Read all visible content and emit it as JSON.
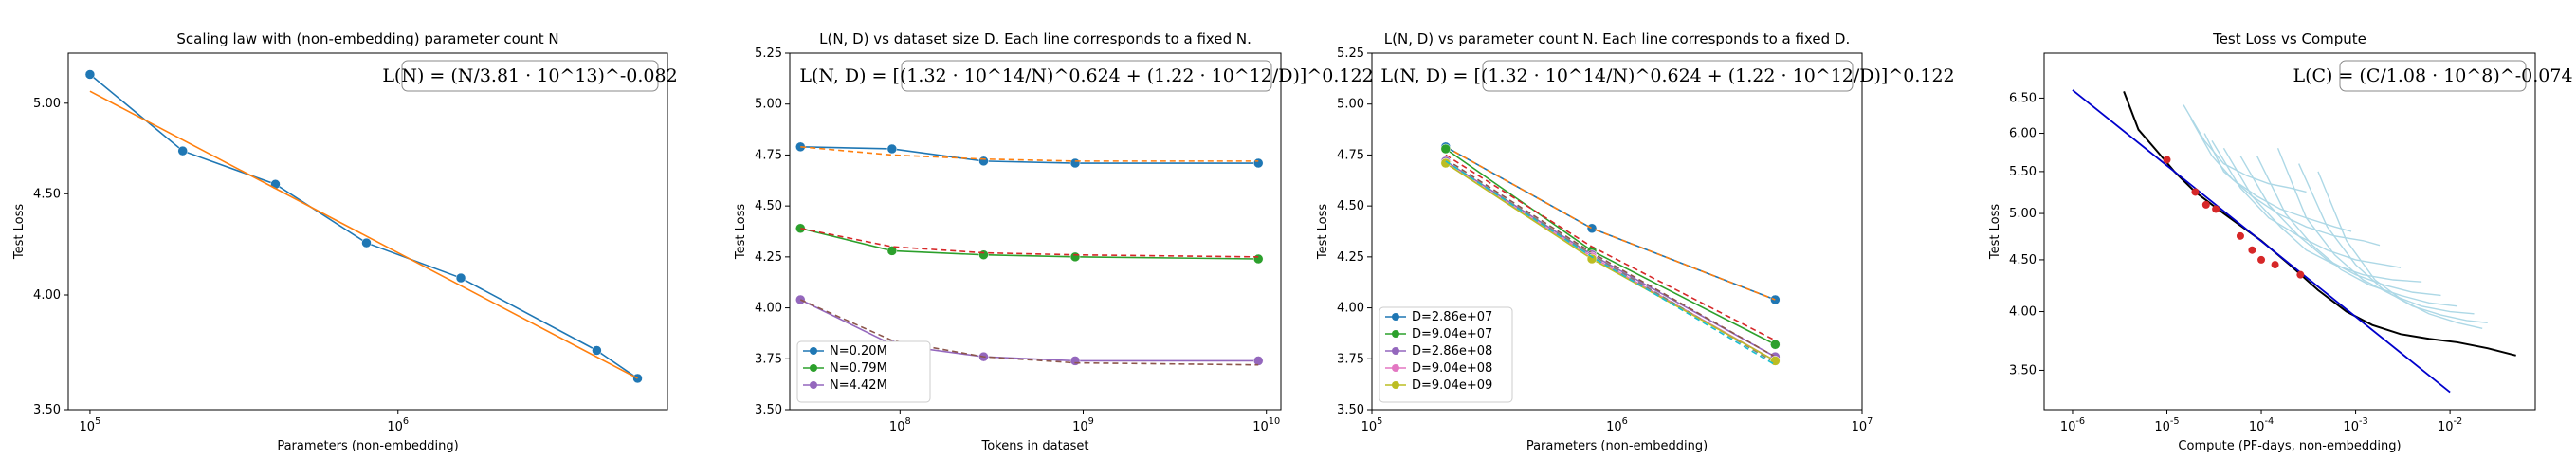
{
  "chart_data": [
    {
      "type": "line",
      "title": "Scaling law with (non-embedding) parameter count N",
      "xlabel": "Parameters (non-embedding)",
      "ylabel": "Test Loss",
      "xscale": "log",
      "yscale": "log",
      "xlim": [
        85000,
        7500000
      ],
      "ylim": [
        3.5,
        5.3
      ],
      "xticks": [
        {
          "v": 100000,
          "label": "10^5"
        },
        {
          "v": 1000000,
          "label": "10^6"
        }
      ],
      "yticks": [
        {
          "v": 3.5,
          "label": "3.50"
        },
        {
          "v": 4.0,
          "label": "4.00"
        },
        {
          "v": 4.5,
          "label": "4.50"
        },
        {
          "v": 5.0,
          "label": "5.00"
        }
      ],
      "annotation": "L(N) = (N/3.81 · 10^13)^-0.082",
      "legend": "none",
      "series": [
        {
          "color": "#1f77b4",
          "marker": true,
          "dash": false,
          "x": [
            100000,
            200000,
            400000,
            790000,
            1600000,
            4420000,
            6000000
          ],
          "y": [
            5.17,
            4.73,
            4.55,
            4.25,
            4.08,
            3.75,
            3.63
          ]
        },
        {
          "color": "#ff7f0e",
          "marker": false,
          "dash": false,
          "x": [
            100000,
            6000000
          ],
          "y": [
            5.07,
            3.63
          ]
        }
      ]
    },
    {
      "type": "line",
      "title": "L(N, D) vs dataset size D. Each line corresponds to a fixed N.",
      "xlabel": "Tokens in dataset",
      "ylabel": "Test Loss",
      "xscale": "log",
      "yscale": "linear",
      "xlim": [
        25000000,
        12000000000
      ],
      "ylim": [
        3.5,
        5.25
      ],
      "xticks": [
        {
          "v": 100000000,
          "label": "10^8"
        },
        {
          "v": 1000000000,
          "label": "10^9"
        },
        {
          "v": 10000000000,
          "label": "10^10"
        }
      ],
      "yticks": [
        {
          "v": 3.5,
          "label": "3.50"
        },
        {
          "v": 3.75,
          "label": "3.75"
        },
        {
          "v": 4.0,
          "label": "4.00"
        },
        {
          "v": 4.25,
          "label": "4.25"
        },
        {
          "v": 4.5,
          "label": "4.50"
        },
        {
          "v": 4.75,
          "label": "4.75"
        },
        {
          "v": 5.0,
          "label": "5.00"
        },
        {
          "v": 5.25,
          "label": "5.25"
        }
      ],
      "annotation": "L(N, D) = [(1.32 · 10^14/N)^0.624 + (1.22 · 10^12/D)]^0.122",
      "legend": "lower-left",
      "series": [
        {
          "name": "N=0.20M",
          "color": "#1f77b4",
          "marker": true,
          "dash": false,
          "x": [
            28600000,
            90400000,
            286000000,
            904000000,
            9040000000
          ],
          "y": [
            4.79,
            4.78,
            4.72,
            4.71,
            4.71
          ]
        },
        {
          "color": "#ff7f0e",
          "marker": false,
          "dash": true,
          "x": [
            28600000,
            90400000,
            286000000,
            904000000,
            9040000000
          ],
          "y": [
            4.79,
            4.75,
            4.73,
            4.72,
            4.72
          ]
        },
        {
          "name": "N=0.79M",
          "color": "#2ca02c",
          "marker": true,
          "dash": false,
          "x": [
            28600000,
            90400000,
            286000000,
            904000000,
            9040000000
          ],
          "y": [
            4.39,
            4.28,
            4.26,
            4.25,
            4.24
          ]
        },
        {
          "color": "#d62728",
          "marker": false,
          "dash": true,
          "x": [
            28600000,
            90400000,
            286000000,
            904000000,
            9040000000
          ],
          "y": [
            4.39,
            4.3,
            4.27,
            4.26,
            4.25
          ]
        },
        {
          "name": "N=4.42M",
          "color": "#9467bd",
          "marker": true,
          "dash": false,
          "x": [
            28600000,
            90400000,
            286000000,
            904000000,
            9040000000
          ],
          "y": [
            4.04,
            3.82,
            3.76,
            3.74,
            3.74
          ]
        },
        {
          "color": "#8c564b",
          "marker": false,
          "dash": true,
          "x": [
            28600000,
            90400000,
            286000000,
            904000000,
            9040000000
          ],
          "y": [
            4.04,
            3.84,
            3.76,
            3.73,
            3.72
          ]
        }
      ]
    },
    {
      "type": "line",
      "title": "L(N, D) vs parameter count N. Each line corresponds to a fixed D.",
      "xlabel": "Parameters (non-embedding)",
      "ylabel": "Test Loss",
      "xscale": "log",
      "yscale": "linear",
      "xlim": [
        100000,
        10000000
      ],
      "ylim": [
        3.5,
        5.25
      ],
      "xticks": [
        {
          "v": 100000,
          "label": "10^5"
        },
        {
          "v": 1000000,
          "label": "10^6"
        },
        {
          "v": 10000000,
          "label": "10^7"
        }
      ],
      "yticks": [
        {
          "v": 3.5,
          "label": "3.50"
        },
        {
          "v": 3.75,
          "label": "3.75"
        },
        {
          "v": 4.0,
          "label": "4.00"
        },
        {
          "v": 4.25,
          "label": "4.25"
        },
        {
          "v": 4.5,
          "label": "4.50"
        },
        {
          "v": 4.75,
          "label": "4.75"
        },
        {
          "v": 5.0,
          "label": "5.00"
        },
        {
          "v": 5.25,
          "label": "5.25"
        }
      ],
      "annotation": "L(N, D) = [(1.32 · 10^14/N)^0.624 + (1.22 · 10^12/D)]^0.122",
      "legend": "lower-left",
      "series": [
        {
          "name": "D=2.86e+07",
          "color": "#1f77b4",
          "marker": true,
          "dash": false,
          "x": [
            200000,
            790000,
            4420000
          ],
          "y": [
            4.79,
            4.39,
            4.04
          ]
        },
        {
          "color": "#ff7f0e",
          "marker": false,
          "dash": true,
          "x": [
            200000,
            790000,
            4420000
          ],
          "y": [
            4.79,
            4.39,
            4.04
          ]
        },
        {
          "name": "D=9.04e+07",
          "color": "#2ca02c",
          "marker": true,
          "dash": false,
          "x": [
            200000,
            790000,
            4420000
          ],
          "y": [
            4.78,
            4.28,
            3.82
          ]
        },
        {
          "color": "#d62728",
          "marker": false,
          "dash": true,
          "x": [
            200000,
            790000,
            4420000
          ],
          "y": [
            4.75,
            4.3,
            3.84
          ]
        },
        {
          "name": "D=2.86e+08",
          "color": "#9467bd",
          "marker": true,
          "dash": false,
          "x": [
            200000,
            790000,
            4420000
          ],
          "y": [
            4.72,
            4.26,
            3.76
          ]
        },
        {
          "color": "#8c564b",
          "marker": false,
          "dash": true,
          "x": [
            200000,
            790000,
            4420000
          ],
          "y": [
            4.73,
            4.27,
            3.76
          ]
        },
        {
          "name": "D=9.04e+08",
          "color": "#e377c2",
          "marker": true,
          "dash": false,
          "x": [
            200000,
            790000,
            4420000
          ],
          "y": [
            4.71,
            4.25,
            3.74
          ]
        },
        {
          "color": "#7f7f7f",
          "marker": false,
          "dash": true,
          "x": [
            200000,
            790000,
            4420000
          ],
          "y": [
            4.72,
            4.26,
            3.73
          ]
        },
        {
          "name": "D=9.04e+09",
          "color": "#bcbd22",
          "marker": true,
          "dash": false,
          "x": [
            200000,
            790000,
            4420000
          ],
          "y": [
            4.71,
            4.24,
            3.74
          ]
        },
        {
          "color": "#17becf",
          "marker": false,
          "dash": true,
          "x": [
            200000,
            790000,
            4420000
          ],
          "y": [
            4.72,
            4.25,
            3.72
          ]
        }
      ]
    },
    {
      "type": "line",
      "title": "Test Loss vs Compute",
      "xlabel": "Compute (PF-days, non-embedding)",
      "ylabel": "Test Loss",
      "xscale": "log",
      "yscale": "log",
      "xlim": [
        5e-07,
        0.08
      ],
      "ylim": [
        3.2,
        7.2
      ],
      "xticks": [
        {
          "v": 1e-06,
          "label": "10^-6"
        },
        {
          "v": 1e-05,
          "label": "10^-5"
        },
        {
          "v": 0.0001,
          "label": "10^-4"
        },
        {
          "v": 0.001,
          "label": "10^-3"
        },
        {
          "v": 0.01,
          "label": "10^-2"
        }
      ],
      "yticks": [
        {
          "v": 3.5,
          "label": "3.50"
        },
        {
          "v": 4.0,
          "label": "4.00"
        },
        {
          "v": 4.5,
          "label": "4.50"
        },
        {
          "v": 5.0,
          "label": "5.00"
        },
        {
          "v": 5.5,
          "label": "5.50"
        },
        {
          "v": 6.0,
          "label": "6.00"
        },
        {
          "v": 6.5,
          "label": "6.50"
        }
      ],
      "annotation": "L(C) = (C/1.08 · 10^8)^-0.074",
      "legend": "none",
      "series": [
        {
          "color": "#add8e6",
          "width": 1.4,
          "x": [
            1.5e-05,
            2.5e-05,
            4e-05,
            7e-05,
            0.00012,
            0.0002,
            0.0003
          ],
          "y": [
            6.4,
            5.9,
            5.6,
            5.45,
            5.35,
            5.3,
            5.25
          ]
        },
        {
          "color": "#add8e6",
          "width": 1.4,
          "x": [
            1.8e-05,
            3e-05,
            5e-05,
            9e-05,
            0.00016,
            0.0003,
            0.0006,
            0.0009
          ],
          "y": [
            6.2,
            5.7,
            5.4,
            5.2,
            5.05,
            4.95,
            4.85,
            4.8
          ]
        },
        {
          "color": "#add8e6",
          "width": 1.4,
          "x": [
            2.5e-05,
            4e-05,
            8e-05,
            0.00015,
            0.0003,
            0.0006,
            0.0012,
            0.0018
          ],
          "y": [
            6.0,
            5.5,
            5.2,
            5.0,
            4.85,
            4.75,
            4.7,
            4.65
          ]
        },
        {
          "color": "#add8e6",
          "width": 1.4,
          "x": [
            3e-05,
            6e-05,
            0.00012,
            0.00025,
            0.0005,
            0.001,
            0.002,
            0.003
          ],
          "y": [
            5.9,
            5.3,
            4.95,
            4.75,
            4.6,
            4.5,
            4.45,
            4.42
          ]
        },
        {
          "color": "#add8e6",
          "width": 1.4,
          "x": [
            4e-05,
            8e-05,
            0.00016,
            0.0003,
            0.0006,
            0.0012,
            0.0025,
            0.005
          ],
          "y": [
            5.8,
            5.2,
            4.85,
            4.6,
            4.45,
            4.35,
            4.3,
            4.28
          ]
        },
        {
          "color": "#add8e6",
          "width": 1.4,
          "x": [
            6e-05,
            0.00012,
            0.00025,
            0.0005,
            0.001,
            0.002,
            0.004,
            0.008
          ],
          "y": [
            5.7,
            5.1,
            4.75,
            4.5,
            4.35,
            4.25,
            4.18,
            4.15
          ]
        },
        {
          "color": "#add8e6",
          "width": 1.4,
          "x": [
            9e-05,
            0.00018,
            0.00035,
            0.0007,
            0.0014,
            0.003,
            0.006,
            0.012
          ],
          "y": [
            5.7,
            5.0,
            4.65,
            4.4,
            4.25,
            4.15,
            4.08,
            4.05
          ]
        },
        {
          "color": "#add8e6",
          "width": 1.4,
          "x": [
            0.00015,
            0.0003,
            0.0006,
            0.0012,
            0.0025,
            0.005,
            0.01,
            0.018
          ],
          "y": [
            5.8,
            4.95,
            4.55,
            4.3,
            4.15,
            4.05,
            4.0,
            3.98
          ]
        },
        {
          "color": "#add8e6",
          "width": 1.4,
          "x": [
            0.00025,
            0.0005,
            0.001,
            0.002,
            0.004,
            0.008,
            0.015,
            0.025
          ],
          "y": [
            5.6,
            4.85,
            4.45,
            4.2,
            4.05,
            3.97,
            3.92,
            3.9
          ]
        },
        {
          "color": "#add8e6",
          "width": 1.4,
          "x": [
            0.0004,
            0.0008,
            0.0016,
            0.0032,
            0.006,
            0.012,
            0.022
          ],
          "y": [
            5.5,
            4.7,
            4.3,
            4.1,
            3.98,
            3.9,
            3.85
          ]
        },
        {
          "color": "#000000",
          "width": 2,
          "x": [
            3.5e-06,
            5e-06,
            8e-06,
            1.2e-05,
            2e-05,
            4e-05,
            0.0001,
            0.0002,
            0.0004,
            0.0008,
            0.0015,
            0.003,
            0.006,
            0.012,
            0.025,
            0.05
          ],
          "y": [
            6.6,
            6.05,
            5.75,
            5.5,
            5.25,
            5.0,
            4.7,
            4.45,
            4.2,
            4.0,
            3.88,
            3.8,
            3.76,
            3.73,
            3.68,
            3.62
          ]
        },
        {
          "color": "#0000cc",
          "width": 1.8,
          "x": [
            1e-06,
            0.01
          ],
          "y": [
            6.62,
            3.33
          ]
        },
        {
          "color": "#d62728",
          "marker": true,
          "dot_only": true,
          "x": [
            1e-05,
            2e-05,
            2.6e-05,
            3.3e-05,
            6e-05,
            8e-05,
            0.0001,
            0.00014,
            0.00026
          ],
          "y": [
            5.65,
            5.25,
            5.1,
            5.05,
            4.75,
            4.6,
            4.5,
            4.45,
            4.35
          ]
        }
      ]
    }
  ]
}
